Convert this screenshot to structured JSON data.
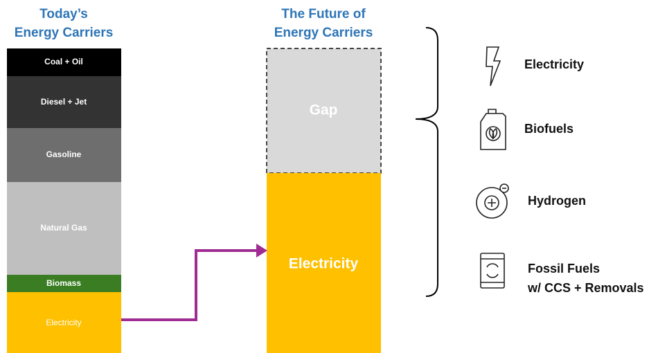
{
  "today": {
    "title": [
      "Today’s",
      "Energy Carriers"
    ],
    "segments": [
      "Coal + Oil",
      "Diesel + Jet",
      "Gasoline",
      "Natural Gas",
      "Biomass",
      "Electricity"
    ]
  },
  "future": {
    "title": [
      "The Future of",
      "Energy Carriers"
    ],
    "segments": [
      "Gap",
      "Electricity"
    ]
  },
  "options": [
    [
      "Electricity"
    ],
    [
      "Biofuels"
    ],
    [
      "Hydrogen"
    ],
    [
      "Fossil Fuels",
      "w/ CCS + Removals"
    ]
  ]
}
